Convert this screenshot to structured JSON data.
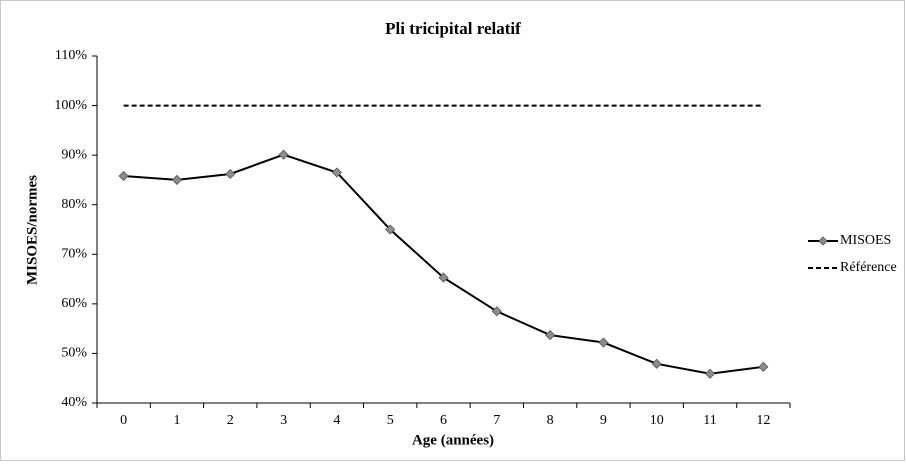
{
  "chart_data": {
    "type": "line",
    "title": "Pli tricipital relatif",
    "xlabel": "Age (années)",
    "ylabel": "MISOES/normes",
    "categories": [
      "0",
      "1",
      "2",
      "3",
      "4",
      "5",
      "6",
      "7",
      "8",
      "9",
      "10",
      "11",
      "12"
    ],
    "series": [
      {
        "name": "MISOES",
        "color": "#000000",
        "marker": "diamond",
        "marker_color": "#8c8c8c",
        "dashed": false,
        "values": [
          85.8,
          85.0,
          86.2,
          90.1,
          86.5,
          75.0,
          65.3,
          58.5,
          53.7,
          52.2,
          47.9,
          45.9,
          47.3
        ]
      },
      {
        "name": "Référence",
        "color": "#000000",
        "marker": null,
        "dashed": true,
        "values": [
          100,
          100,
          100,
          100,
          100,
          100,
          100,
          100,
          100,
          100,
          100,
          100,
          100
        ]
      }
    ],
    "ylim": [
      40,
      110
    ],
    "yticks": [
      {
        "value": 40,
        "label": "40%"
      },
      {
        "value": 50,
        "label": "50%"
      },
      {
        "value": 60,
        "label": "60%"
      },
      {
        "value": 70,
        "label": "70%"
      },
      {
        "value": 80,
        "label": "80%"
      },
      {
        "value": 90,
        "label": "90%"
      },
      {
        "value": 100,
        "label": "100%"
      },
      {
        "value": 110,
        "label": "110%"
      }
    ],
    "grid": false,
    "legend": "right"
  }
}
